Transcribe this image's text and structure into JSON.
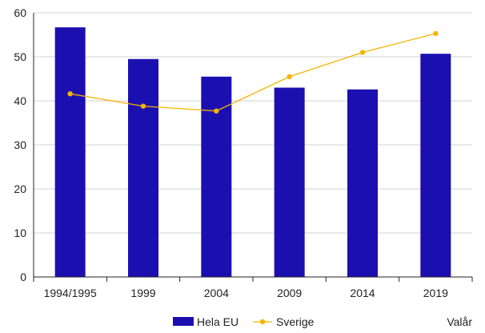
{
  "chart_data": {
    "type": "bar",
    "categories": [
      "1994/1995",
      "1999",
      "2004",
      "2009",
      "2014",
      "2019"
    ],
    "series": [
      {
        "name": "Hela EU",
        "type": "bar",
        "color": "#1c0fb0",
        "values": [
          56.7,
          49.5,
          45.5,
          43.0,
          42.6,
          50.7
        ]
      },
      {
        "name": "Sverige",
        "type": "line",
        "color": "#f5b400",
        "values": [
          41.6,
          38.8,
          37.7,
          45.5,
          51.0,
          55.3
        ]
      }
    ],
    "ylim": [
      0,
      60
    ],
    "yticks": [
      0,
      10,
      20,
      30,
      40,
      50,
      60
    ],
    "grid": true,
    "xlabel": "Valår",
    "legend_position": "bottom"
  }
}
